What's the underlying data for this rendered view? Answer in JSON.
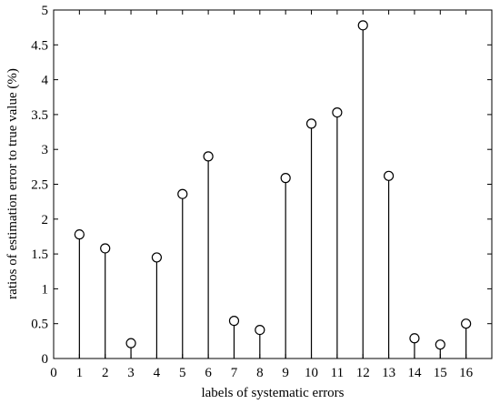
{
  "chart_data": {
    "type": "stem",
    "xlabel": "labels of systematic errors",
    "ylabel": "ratios of estimation error to true value (%)",
    "xlim": [
      0,
      17
    ],
    "ylim": [
      0,
      5
    ],
    "x": [
      1,
      2,
      3,
      4,
      5,
      6,
      7,
      8,
      9,
      10,
      11,
      12,
      13,
      14,
      15,
      16
    ],
    "values": [
      1.78,
      1.58,
      0.22,
      1.45,
      2.36,
      2.9,
      0.54,
      0.41,
      2.59,
      3.37,
      3.53,
      4.78,
      2.62,
      0.29,
      0.2,
      0.5
    ],
    "x_ticks": [
      "0",
      "1",
      "2",
      "3",
      "4",
      "5",
      "6",
      "7",
      "8",
      "9",
      "10",
      "11",
      "12",
      "13",
      "14",
      "15",
      "16"
    ],
    "y_ticks": [
      "0",
      "0.5",
      "1",
      "1.5",
      "2",
      "2.5",
      "3",
      "3.5",
      "4",
      "4.5",
      "5"
    ],
    "grid": false,
    "marker": "open-circle"
  }
}
